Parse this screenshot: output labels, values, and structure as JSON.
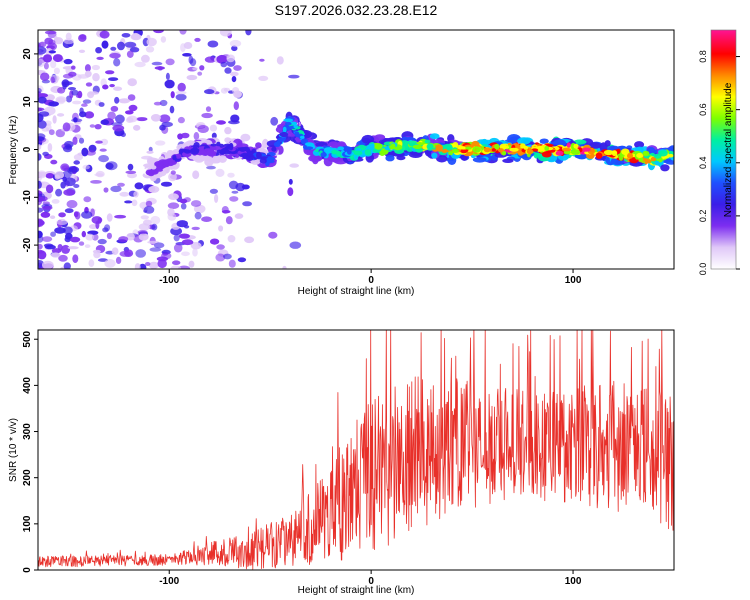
{
  "title": "S197.2026.032.23.28.E12",
  "colors": {
    "snr_line": "#e8302a",
    "colormap": [
      "#ffffff",
      "#e0c8f8",
      "#7d2ef0",
      "#3a1ee8",
      "#1f4fff",
      "#00c8ff",
      "#00f0a0",
      "#7dff00",
      "#ffff00",
      "#ff8a00",
      "#ff0000",
      "#ff1493"
    ]
  },
  "chart_data": [
    {
      "type": "heatmap",
      "title": "S197.2026.032.23.28.E12",
      "xlabel": "Height of straight line (km)",
      "ylabel": "Frequency (Hz)",
      "xlim": [
        -165,
        150
      ],
      "ylim": [
        -25,
        25
      ],
      "x_ticks": [
        "-100",
        "0",
        "100"
      ],
      "x_tick_values": [
        -100,
        0,
        100
      ],
      "y_ticks": [
        "-20",
        "-10",
        "0",
        "10",
        "20"
      ],
      "y_tick_values": [
        -20,
        -10,
        0,
        10,
        20
      ],
      "colorbar": {
        "label": "Normalized spectral amplitude",
        "range": [
          0,
          0.9
        ],
        "ticks": [
          "0.0",
          "0.2",
          "0.4",
          "0.6",
          "0.8"
        ],
        "tick_values": [
          0,
          0.2,
          0.4,
          0.6,
          0.8
        ]
      },
      "ridge": {
        "x": [
          -110,
          -90,
          -70,
          -50,
          -40,
          -30,
          -10,
          0,
          20,
          40,
          60,
          80,
          100,
          120,
          140,
          150
        ],
        "freq": [
          -5,
          0,
          0,
          -2,
          6,
          0,
          -1,
          0,
          1,
          0,
          0,
          0,
          0,
          -1,
          -2,
          -1
        ],
        "amplitude": [
          0.15,
          0.25,
          0.25,
          0.35,
          0.45,
          0.45,
          0.5,
          0.55,
          0.65,
          0.75,
          0.8,
          0.85,
          0.85,
          0.8,
          0.7,
          0.6
        ]
      },
      "noise_region": [
        -165,
        -90
      ]
    },
    {
      "type": "line",
      "xlabel": "Height of straight line (km)",
      "ylabel": "SNR (10 * v/v)",
      "xlim": [
        -165,
        150
      ],
      "ylim": [
        0,
        520
      ],
      "x_ticks": [
        "-100",
        "0",
        "100"
      ],
      "x_tick_values": [
        -100,
        0,
        100
      ],
      "y_ticks": [
        "0",
        "100",
        "200",
        "300",
        "400",
        "500"
      ],
      "y_tick_values": [
        0,
        100,
        200,
        300,
        400,
        500
      ],
      "series": [
        {
          "name": "SNR",
          "envelope_x": [
            -165,
            -100,
            -80,
            -60,
            -45,
            -30,
            -20,
            -10,
            0,
            10,
            20,
            30,
            40,
            60,
            80,
            100,
            120,
            140,
            150
          ],
          "envelope_mean": [
            18,
            22,
            35,
            40,
            60,
            90,
            120,
            170,
            200,
            230,
            250,
            260,
            270,
            275,
            270,
            265,
            270,
            250,
            230
          ],
          "envelope_spread": [
            12,
            12,
            25,
            40,
            55,
            80,
            110,
            150,
            170,
            180,
            170,
            160,
            150,
            130,
            120,
            130,
            140,
            150,
            160
          ]
        }
      ]
    }
  ]
}
